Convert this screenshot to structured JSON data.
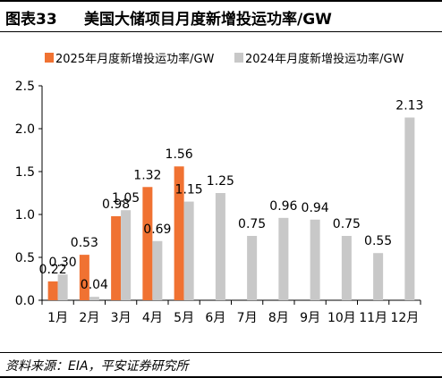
{
  "header": {
    "figure_label": "图表33",
    "title": "美国大储项目月度新增投运功率/GW"
  },
  "source": "资料来源：EIA，平安证券研究所",
  "colors": {
    "series_2025": "#f07232",
    "series_2024": "#c8c8c8",
    "axis": "#000000"
  },
  "chart_data": {
    "type": "bar",
    "categories": [
      "1月",
      "2月",
      "3月",
      "4月",
      "5月",
      "6月",
      "7月",
      "8月",
      "9月",
      "10月",
      "11月",
      "12月"
    ],
    "series": [
      {
        "name": "2025年月度新增投运功率/GW",
        "values": [
          0.22,
          0.53,
          0.98,
          1.32,
          1.56,
          null,
          null,
          null,
          null,
          null,
          null,
          null
        ]
      },
      {
        "name": "2024年月度新增投运功率/GW",
        "values": [
          0.3,
          0.04,
          1.05,
          0.69,
          1.15,
          1.25,
          0.75,
          0.96,
          0.94,
          0.75,
          0.55,
          2.13
        ]
      }
    ],
    "ylim": [
      0,
      2.5
    ],
    "yticks": [
      "0.0",
      "0.5",
      "1.0",
      "1.5",
      "2.0",
      "2.5"
    ],
    "legend_position": "top",
    "grid": false,
    "data_labels": {
      "2025年月度新增投运功率/GW": [
        "0.22",
        "0.53",
        "0.98",
        "1.32",
        "1.56"
      ],
      "2024年月度新增投运功率/GW": [
        "0.30",
        "0.04",
        "1.05",
        "0.69",
        "1.15",
        "1.25",
        "0.75",
        "0.96",
        "0.94",
        "0.75",
        "0.55",
        "2.13"
      ]
    }
  }
}
